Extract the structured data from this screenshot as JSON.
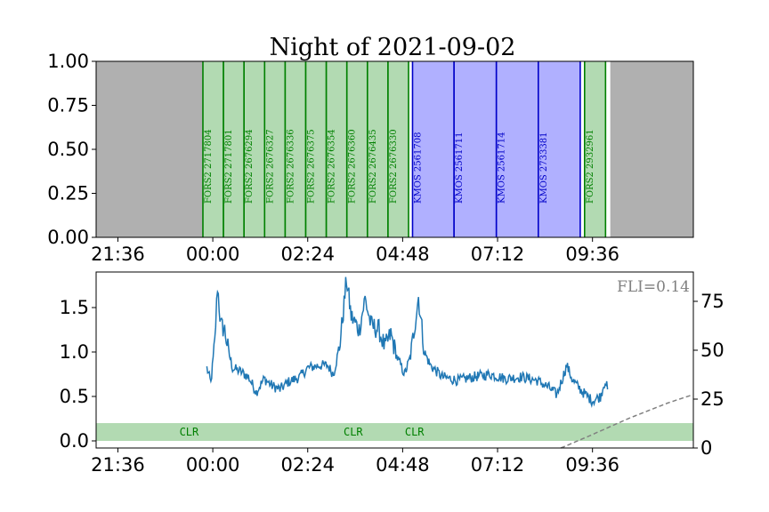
{
  "title": "Night of 2021-09-02",
  "chart_data": [
    {
      "type": "timeline",
      "title": "Night of 2021-09-02",
      "x_ticks": [
        "21:36",
        "00:00",
        "02:24",
        "04:48",
        "07:12",
        "09:36"
      ],
      "y_ticks": [
        "0.00",
        "0.25",
        "0.50",
        "0.75",
        "1.00"
      ],
      "ylim": [
        0,
        1
      ],
      "xlim_hours": [
        -2.95,
        12.15
      ],
      "daytime_before_end_h": -0.25,
      "daytime_after_start_h": 10.05,
      "colors": {
        "fors2": "#b2dab2",
        "fors2_line": "#008000",
        "kmos": "#b0b0ff",
        "kmos_line": "#0000c8",
        "day": "#b0b0b0"
      },
      "blocks": [
        {
          "label": "FORS2 2717804",
          "instrument": "FORS2",
          "start_h": -0.25,
          "end_h": 0.27
        },
        {
          "label": "FORS2 2717801",
          "instrument": "FORS2",
          "start_h": 0.27,
          "end_h": 0.79
        },
        {
          "label": "FORS2 2676294",
          "instrument": "FORS2",
          "start_h": 0.79,
          "end_h": 1.31
        },
        {
          "label": "FORS2 2676327",
          "instrument": "FORS2",
          "start_h": 1.31,
          "end_h": 1.83
        },
        {
          "label": "FORS2 2676336",
          "instrument": "FORS2",
          "start_h": 1.83,
          "end_h": 2.35
        },
        {
          "label": "FORS2 2676375",
          "instrument": "FORS2",
          "start_h": 2.35,
          "end_h": 2.87
        },
        {
          "label": "FORS2 2676354",
          "instrument": "FORS2",
          "start_h": 2.87,
          "end_h": 3.39
        },
        {
          "label": "FORS2 2676360",
          "instrument": "FORS2",
          "start_h": 3.39,
          "end_h": 3.91
        },
        {
          "label": "FORS2 2676435",
          "instrument": "FORS2",
          "start_h": 3.91,
          "end_h": 4.43
        },
        {
          "label": "FORS2 2676330",
          "instrument": "FORS2",
          "start_h": 4.43,
          "end_h": 4.95
        },
        {
          "label": "KMOS 2561708",
          "instrument": "KMOS",
          "start_h": 5.05,
          "end_h": 6.1
        },
        {
          "label": "KMOS 2561711",
          "instrument": "KMOS",
          "start_h": 6.1,
          "end_h": 7.17
        },
        {
          "label": "KMOS 2561714",
          "instrument": "KMOS",
          "start_h": 7.17,
          "end_h": 8.23
        },
        {
          "label": "KMOS 2733381",
          "instrument": "KMOS",
          "start_h": 8.23,
          "end_h": 9.29
        },
        {
          "label": "FORS2 2932961",
          "instrument": "FORS2",
          "start_h": 9.4,
          "end_h": 9.93
        }
      ]
    },
    {
      "type": "line",
      "x_ticks": [
        "21:36",
        "00:00",
        "02:24",
        "04:48",
        "07:12",
        "09:36"
      ],
      "y_ticks": [
        "0.0",
        "0.5",
        "1.0",
        "1.5"
      ],
      "y2_ticks": [
        "0",
        "25",
        "50",
        "75"
      ],
      "ylim": [
        -0.08,
        1.9
      ],
      "y2lim": [
        0,
        90
      ],
      "xlim_hours": [
        -2.95,
        12.15
      ],
      "annotation": "FLI=0.14",
      "weather_band": {
        "ymin": 0.0,
        "ymax": 0.2,
        "color": "#b2dab2"
      },
      "weather_labels": [
        {
          "text": "CLR",
          "x_h": -0.6
        },
        {
          "text": "CLR",
          "x_h": 3.55
        },
        {
          "text": "CLR",
          "x_h": 5.1
        }
      ],
      "seeing_series": {
        "color": "#1f77b4",
        "anchors": [
          [
            -0.15,
            0.82
          ],
          [
            -0.05,
            0.65
          ],
          [
            0.05,
            1.1
          ],
          [
            0.12,
            1.75
          ],
          [
            0.2,
            1.3
          ],
          [
            0.3,
            1.25
          ],
          [
            0.4,
            1.0
          ],
          [
            0.5,
            0.82
          ],
          [
            0.7,
            0.78
          ],
          [
            0.9,
            0.72
          ],
          [
            1.1,
            0.55
          ],
          [
            1.3,
            0.7
          ],
          [
            1.5,
            0.62
          ],
          [
            1.7,
            0.58
          ],
          [
            1.9,
            0.66
          ],
          [
            2.2,
            0.72
          ],
          [
            2.4,
            0.82
          ],
          [
            2.7,
            0.85
          ],
          [
            2.9,
            0.85
          ],
          [
            3.05,
            0.75
          ],
          [
            3.2,
            1.05
          ],
          [
            3.3,
            1.45
          ],
          [
            3.38,
            1.82
          ],
          [
            3.5,
            1.4
          ],
          [
            3.7,
            1.25
          ],
          [
            3.85,
            1.6
          ],
          [
            4.0,
            1.3
          ],
          [
            4.2,
            1.25
          ],
          [
            4.35,
            1.05
          ],
          [
            4.5,
            1.2
          ],
          [
            4.65,
            0.95
          ],
          [
            4.85,
            0.75
          ],
          [
            5.0,
            0.95
          ],
          [
            5.2,
            1.62
          ],
          [
            5.35,
            1.0
          ],
          [
            5.5,
            0.85
          ],
          [
            5.8,
            0.72
          ],
          [
            6.2,
            0.68
          ],
          [
            6.6,
            0.72
          ],
          [
            7.0,
            0.75
          ],
          [
            7.4,
            0.7
          ],
          [
            7.8,
            0.72
          ],
          [
            8.2,
            0.68
          ],
          [
            8.5,
            0.6
          ],
          [
            8.7,
            0.52
          ],
          [
            8.95,
            0.85
          ],
          [
            9.1,
            0.68
          ],
          [
            9.35,
            0.55
          ],
          [
            9.6,
            0.45
          ],
          [
            9.8,
            0.5
          ],
          [
            9.92,
            0.68
          ],
          [
            9.98,
            0.58
          ]
        ]
      },
      "moon_series": {
        "color": "#808080",
        "points": [
          [
            8.8,
            0
          ],
          [
            9.5,
            6
          ],
          [
            10.5,
            15
          ],
          [
            11.5,
            23
          ],
          [
            12.1,
            27
          ]
        ]
      }
    }
  ]
}
